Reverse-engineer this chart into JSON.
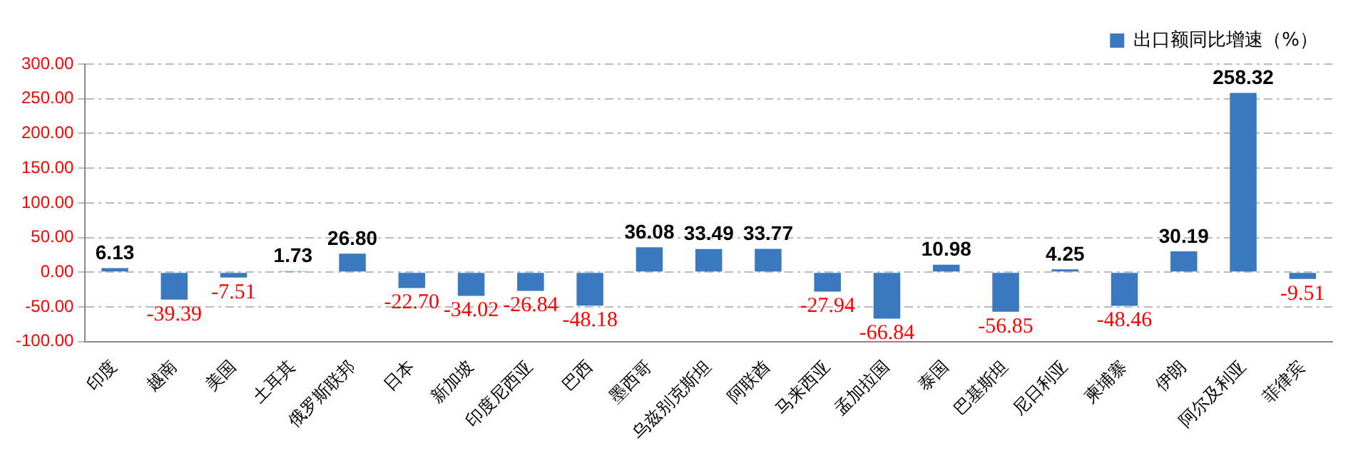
{
  "chart_data": {
    "type": "bar",
    "categories": [
      "印度",
      "越南",
      "美国",
      "土耳其",
      "俄罗斯联邦",
      "日本",
      "新加坡",
      "印度尼西亚",
      "巴西",
      "墨西哥",
      "乌兹别克斯坦",
      "阿联酋",
      "马来西亚",
      "孟加拉国",
      "泰国",
      "巴基斯坦",
      "尼日利亚",
      "柬埔寨",
      "伊朗",
      "阿尔及利亚",
      "菲律宾"
    ],
    "series": [
      {
        "name": "出口额同比增速（%）",
        "color": "#3a78c0",
        "values": [
          6.13,
          -39.39,
          -7.51,
          1.73,
          26.8,
          -22.7,
          -34.02,
          -26.84,
          -48.18,
          36.08,
          33.49,
          33.77,
          -27.94,
          -66.84,
          10.98,
          -56.85,
          4.25,
          -48.46,
          30.19,
          258.32,
          -9.51
        ],
        "value_labels": [
          "6.13",
          "-39.39",
          "-7.51",
          "1.73",
          "26.80",
          "-22.70",
          "-34.02",
          "-26.84",
          "-48.18",
          "36.08",
          "33.49",
          "33.77",
          "-27.94",
          "-66.84",
          "10.98",
          "-56.85",
          "4.25",
          "-48.46",
          "30.19",
          "258.32",
          "-9.51"
        ]
      }
    ],
    "ylim": [
      -100,
      300
    ],
    "yticks": [
      {
        "value": -100,
        "label": "-100.00"
      },
      {
        "value": -50,
        "label": "-50.00"
      },
      {
        "value": 0,
        "label": "0.00"
      },
      {
        "value": 50,
        "label": "50.00"
      },
      {
        "value": 100,
        "label": "100.00"
      },
      {
        "value": 150,
        "label": "150.00"
      },
      {
        "value": 200,
        "label": "200.00"
      },
      {
        "value": 250,
        "label": "250.00"
      },
      {
        "value": 300,
        "label": "300.00"
      }
    ],
    "grid": "y",
    "legend": "top right"
  }
}
